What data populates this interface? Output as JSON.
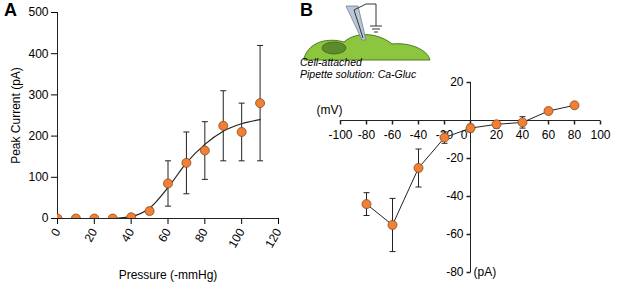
{
  "chart_data": [
    {
      "type": "scatter",
      "panel": "A",
      "x_label": "Pressure (-mmHg)",
      "y_label": "Peak Current (pA)",
      "x": [
        0,
        10,
        20,
        30,
        40,
        50,
        60,
        70,
        80,
        90,
        100,
        110
      ],
      "values": [
        0,
        0,
        0,
        0,
        3,
        18,
        85,
        135,
        165,
        225,
        210,
        280
      ],
      "errors": [
        0,
        0,
        0,
        0,
        3,
        8,
        55,
        75,
        70,
        85,
        70,
        140
      ],
      "fit": {
        "x": [
          30,
          40,
          50,
          60,
          70,
          80,
          90,
          100,
          110
        ],
        "values": [
          0,
          5,
          25,
          75,
          135,
          180,
          212,
          230,
          240
        ]
      },
      "color": "#f08033",
      "marker": "circle",
      "xlim": [
        0,
        120
      ],
      "xticks": [
        0,
        20,
        40,
        60,
        80,
        100,
        120
      ],
      "ylim": [
        0,
        500
      ],
      "yticks": [
        0,
        100,
        200,
        300,
        400,
        500
      ]
    },
    {
      "type": "line",
      "panel": "B",
      "x_label": "(mV)",
      "y_label": "(pA)",
      "annotations": [
        "Cell-attached",
        "Pipette solution: Ca-Gluc"
      ],
      "x": [
        -80,
        -60,
        -40,
        -20,
        0,
        20,
        40,
        60,
        80
      ],
      "values": [
        -44,
        -55,
        -25,
        -9,
        -4,
        -2,
        -1,
        5,
        8
      ],
      "errors": [
        6,
        14,
        10,
        3,
        2,
        2,
        3,
        1,
        1
      ],
      "color": "#f08033",
      "marker": "circle",
      "xlim": [
        -100,
        100
      ],
      "xticks": [
        -100,
        -80,
        -60,
        -40,
        -20,
        0,
        20,
        40,
        60,
        80,
        100
      ],
      "ylim": [
        -80,
        20
      ],
      "yticks": [
        -80,
        -60,
        -40,
        -20,
        20
      ]
    }
  ]
}
